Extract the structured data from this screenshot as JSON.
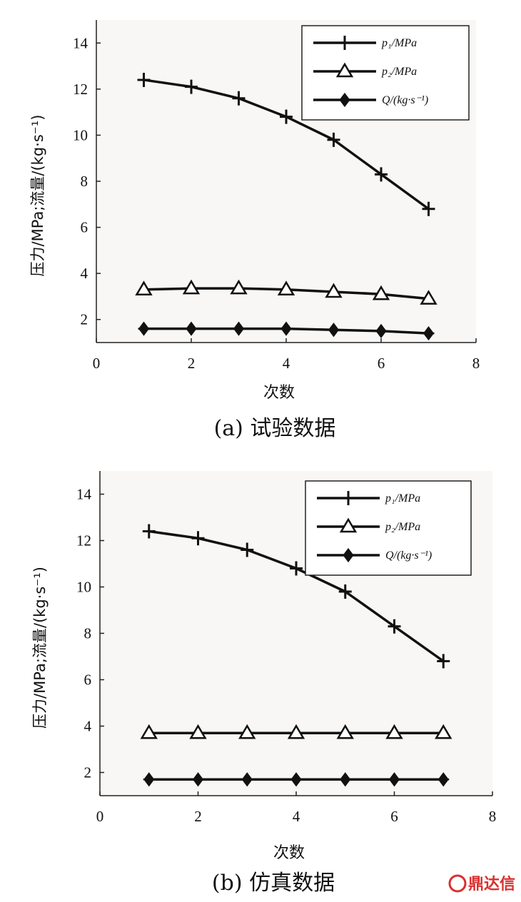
{
  "chart_data": [
    {
      "type": "line",
      "caption": "(a) 试验数据",
      "xlabel": "次数",
      "ylabel": "压力/MPa;流量/(kg·s⁻¹)",
      "xlim": [
        0,
        8
      ],
      "ylim": [
        1,
        15
      ],
      "xticks": [
        0,
        2,
        4,
        6,
        8
      ],
      "yticks": [
        2,
        4,
        6,
        8,
        10,
        12,
        14
      ],
      "x": [
        1,
        2,
        3,
        4,
        5,
        6,
        7
      ],
      "legend_position": "top-right",
      "grid": false,
      "series": [
        {
          "name": "p₁/MPa",
          "marker": "plus",
          "values": [
            12.4,
            12.1,
            11.6,
            10.8,
            9.8,
            8.3,
            6.8
          ]
        },
        {
          "name": "p₂/MPa",
          "marker": "triangle",
          "values": [
            3.3,
            3.35,
            3.35,
            3.3,
            3.2,
            3.1,
            2.9
          ]
        },
        {
          "name": "Q/(kg·s⁻¹)",
          "marker": "diamond",
          "values": [
            1.6,
            1.6,
            1.6,
            1.6,
            1.55,
            1.5,
            1.4
          ]
        }
      ]
    },
    {
      "type": "line",
      "caption": "(b) 仿真数据",
      "xlabel": "次数",
      "ylabel": "压力/MPa;流量/(kg·s⁻¹)",
      "xlim": [
        0,
        8
      ],
      "ylim": [
        1,
        15
      ],
      "xticks": [
        0,
        2,
        4,
        6,
        8
      ],
      "yticks": [
        2,
        4,
        6,
        8,
        10,
        12,
        14
      ],
      "x": [
        1,
        2,
        3,
        4,
        5,
        6,
        7
      ],
      "legend_position": "top-right",
      "grid": false,
      "series": [
        {
          "name": "p₁/MPa",
          "marker": "plus",
          "values": [
            12.4,
            12.1,
            11.6,
            10.8,
            9.8,
            8.3,
            6.8
          ]
        },
        {
          "name": "p₂/MPa",
          "marker": "triangle",
          "values": [
            3.7,
            3.7,
            3.7,
            3.7,
            3.7,
            3.7,
            3.7
          ]
        },
        {
          "name": "Q/(kg·s⁻¹)",
          "marker": "diamond",
          "values": [
            1.7,
            1.7,
            1.7,
            1.7,
            1.7,
            1.7,
            1.7
          ]
        }
      ]
    }
  ],
  "watermark": "鼎达信"
}
